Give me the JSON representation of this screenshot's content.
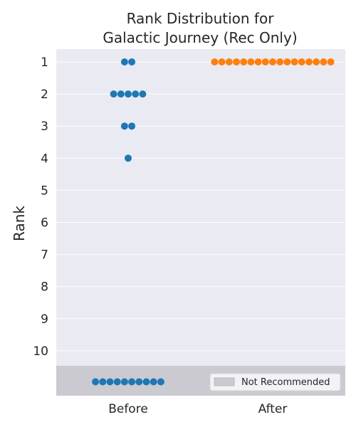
{
  "chart_data": {
    "type": "scatter",
    "title_lines": [
      "Rank Distribution for",
      "Galactic Journey (Rec Only)"
    ],
    "xlabel": "",
    "ylabel": "Rank",
    "categories": [
      "Before",
      "After"
    ],
    "y_ticks": [
      "1",
      "2",
      "3",
      "4",
      "5",
      "6",
      "7",
      "8",
      "9",
      "10"
    ],
    "ylim": [
      0.5,
      11.0
    ],
    "grid": true,
    "not_recommended_label": "Not Recommended",
    "legend_placement": "lower-right",
    "series": [
      {
        "category": "Before",
        "color": "#1f77b4",
        "counts": {
          "1": 2,
          "2": 5,
          "3": 2,
          "4": 1,
          "Not Recommended": 10
        }
      },
      {
        "category": "After",
        "color": "#ff7f0e",
        "counts": {
          "1": 17
        }
      }
    ],
    "colors": {
      "plot_background": "#eaeaf2",
      "not_recommended_band": "#cbcad0",
      "grid": "#ffffff"
    }
  }
}
